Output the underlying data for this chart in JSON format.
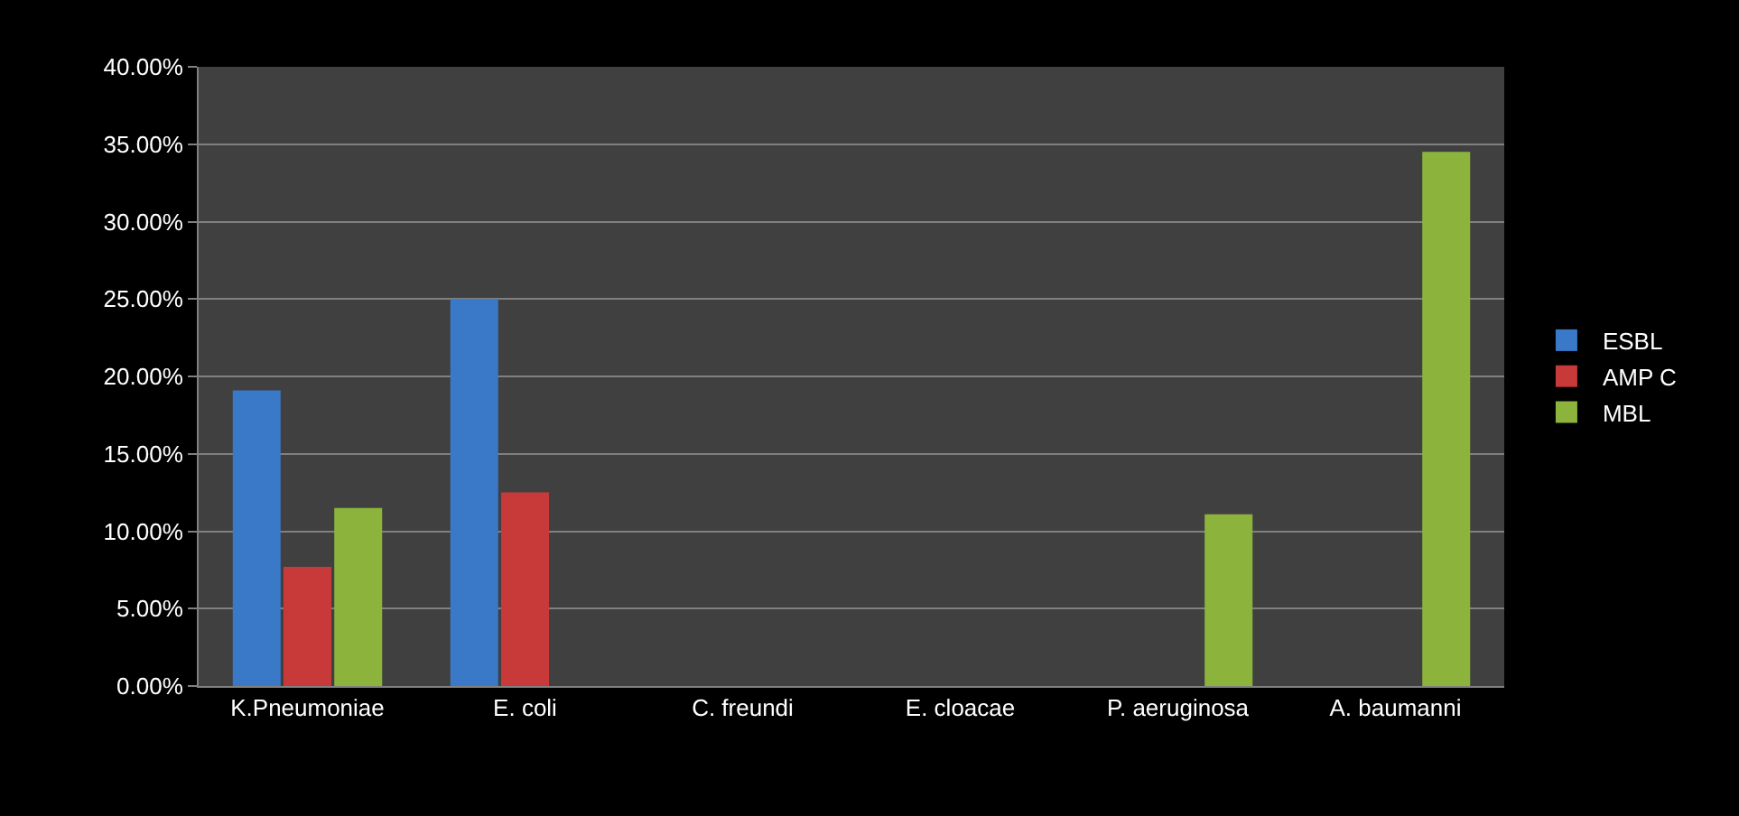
{
  "chart_data": {
    "type": "bar",
    "categories": [
      "K.Pneumoniae",
      "E. coli",
      "C. freundi",
      "E. cloacae",
      "P. aeruginosa",
      "A. baumanni"
    ],
    "series": [
      {
        "name": "ESBL",
        "color": "#3a78c8",
        "values": [
          19.1,
          25.0,
          null,
          null,
          null,
          null
        ]
      },
      {
        "name": "AMP C",
        "color": "#c83a3a",
        "values": [
          7.7,
          12.5,
          null,
          null,
          null,
          null
        ]
      },
      {
        "name": "MBL",
        "color": "#8cb43c",
        "values": [
          11.5,
          null,
          null,
          null,
          11.1,
          34.5
        ]
      }
    ],
    "ylim": [
      0,
      40
    ],
    "yticks": [
      {
        "value": 0,
        "label": "0.00%"
      },
      {
        "value": 5,
        "label": "5.00%"
      },
      {
        "value": 10,
        "label": "10.00%"
      },
      {
        "value": 15,
        "label": "15.00%"
      },
      {
        "value": 20,
        "label": "20.00%"
      },
      {
        "value": 25,
        "label": "25.00%"
      },
      {
        "value": 30,
        "label": "30.00%"
      },
      {
        "value": 35,
        "label": "35.00%"
      },
      {
        "value": 40,
        "label": "40.00%"
      }
    ],
    "grid": "y",
    "legend": "right"
  }
}
